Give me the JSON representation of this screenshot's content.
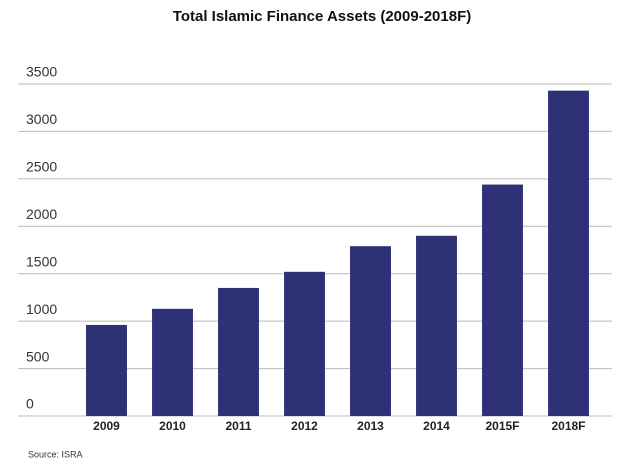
{
  "chart_data": {
    "type": "bar",
    "title": "Total Islamic Finance Assets (2009-2018F)",
    "categories": [
      "2009",
      "2010",
      "2011",
      "2012",
      "2013",
      "2014",
      "2015F",
      "2018F"
    ],
    "values": [
      960,
      1130,
      1350,
      1520,
      1790,
      1900,
      2440,
      3430
    ],
    "color": "#2e3176",
    "ylim": [
      0,
      3500
    ],
    "yticks": [
      0,
      500,
      1000,
      1500,
      2000,
      2500,
      3000,
      3500
    ],
    "grid": true,
    "source": "Source: ISRA"
  }
}
